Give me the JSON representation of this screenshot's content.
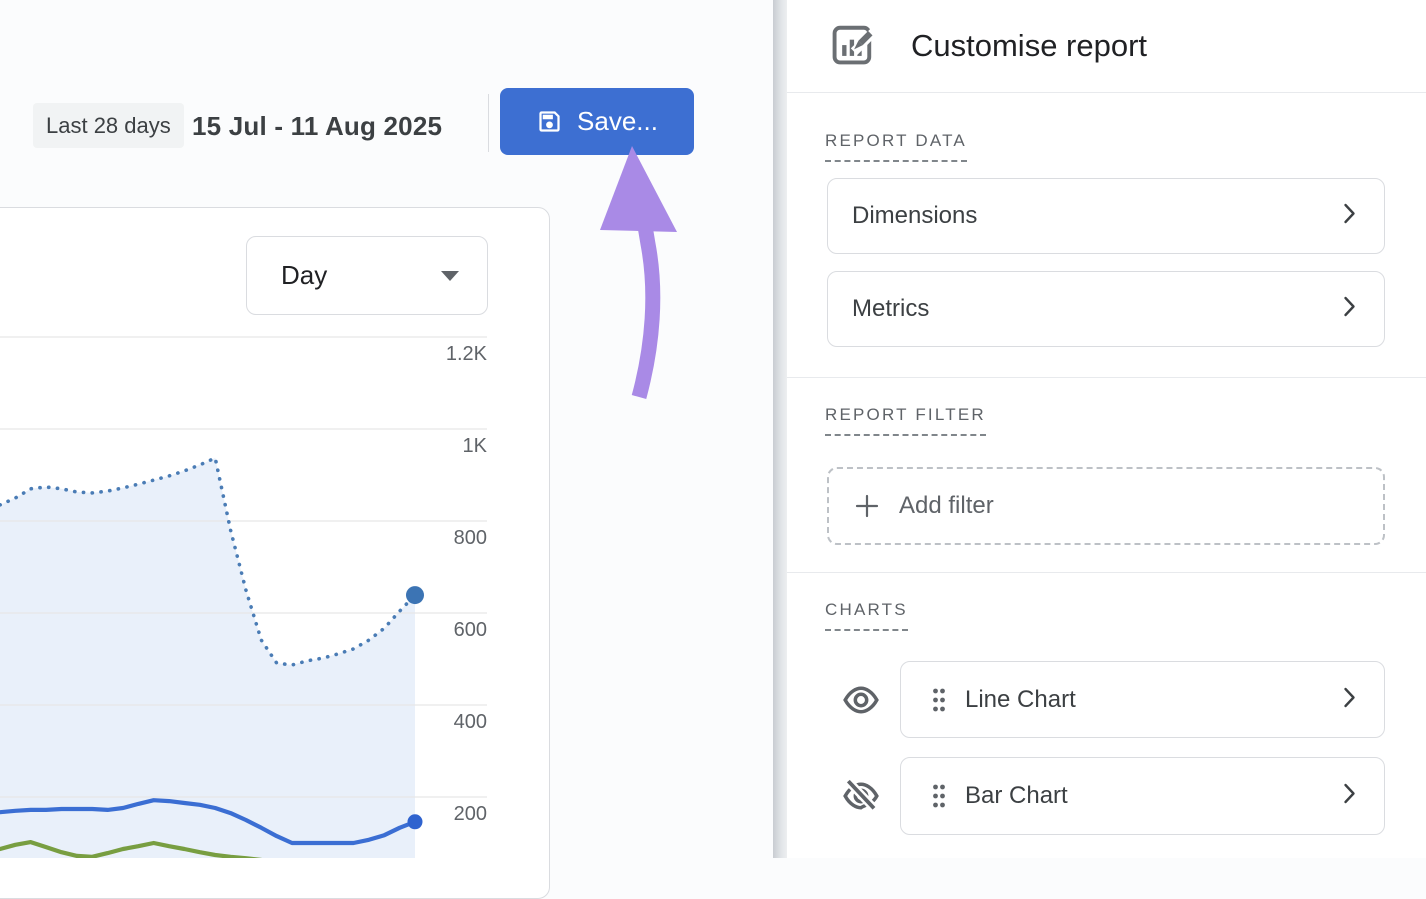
{
  "toolbar": {
    "date_range_chip": "Last 28 days",
    "date_range": "15 Jul - 11 Aug 2025",
    "save_label": "Save..."
  },
  "chart_card": {
    "granularity_selector": "Day",
    "y_ticks": [
      "1.2K",
      "1K",
      "800",
      "600",
      "400",
      "200"
    ]
  },
  "chart_data": {
    "type": "line",
    "title": "",
    "x_range_label": "15 Jul - 11 Aug 2025",
    "x_points": 28,
    "ylim": [
      0,
      1200
    ],
    "y_tick_values": [
      1200,
      1000,
      800,
      600,
      400,
      200
    ],
    "grid": true,
    "legend": "none",
    "series": [
      {
        "name": "dotted-blue-line",
        "style": "dotted",
        "color": "#4a7cb5",
        "area_fill": "#e9f0fa",
        "end_marker": true,
        "marker_color": "#3c74b4",
        "values": [
          835,
          850,
          870,
          874,
          870,
          863,
          861,
          865,
          872,
          880,
          889,
          898,
          909,
          922,
          937,
          780,
          650,
          541,
          491,
          487,
          496,
          502,
          511,
          522,
          541,
          567,
          604,
          639
        ]
      },
      {
        "name": "solid-blue-line",
        "style": "solid",
        "color": "#3b6ed3",
        "end_marker": true,
        "marker_color": "#2f63cf",
        "values": [
          167,
          170,
          172,
          172,
          174,
          174,
          174,
          172,
          176,
          185,
          193,
          191,
          187,
          183,
          176,
          165,
          150,
          133,
          115,
          100,
          100,
          100,
          100,
          100,
          107,
          117,
          133,
          146
        ]
      },
      {
        "name": "green-line",
        "style": "solid",
        "color": "#789e41",
        "end_marker": false,
        "values": [
          87,
          96,
          102,
          91,
          80,
          72,
          70,
          78,
          87,
          93,
          100,
          93,
          87,
          80,
          74,
          70,
          67,
          63
        ]
      }
    ]
  },
  "panel": {
    "title": "Customise report",
    "report_data": {
      "label": "REPORT DATA",
      "items": [
        {
          "label": "Dimensions"
        },
        {
          "label": "Metrics"
        }
      ]
    },
    "report_filter": {
      "label": "REPORT FILTER",
      "add_filter_label": "Add filter"
    },
    "charts": {
      "label": "CHARTS",
      "items": [
        {
          "label": "Line Chart",
          "visible": true
        },
        {
          "label": "Bar Chart",
          "visible": false
        }
      ]
    }
  },
  "colors": {
    "accent_blue": "#3d6fd2",
    "arrow_purple": "#a98ae6",
    "line_blue": "#3b6ed3",
    "dotted_blue": "#4a7cb5",
    "line_green": "#789e41",
    "chip_bg": "#f1f3f4",
    "card_border": "#dadce0",
    "divider": "#e8eaed",
    "text_primary": "#202124",
    "text_secondary": "#5f6368"
  }
}
